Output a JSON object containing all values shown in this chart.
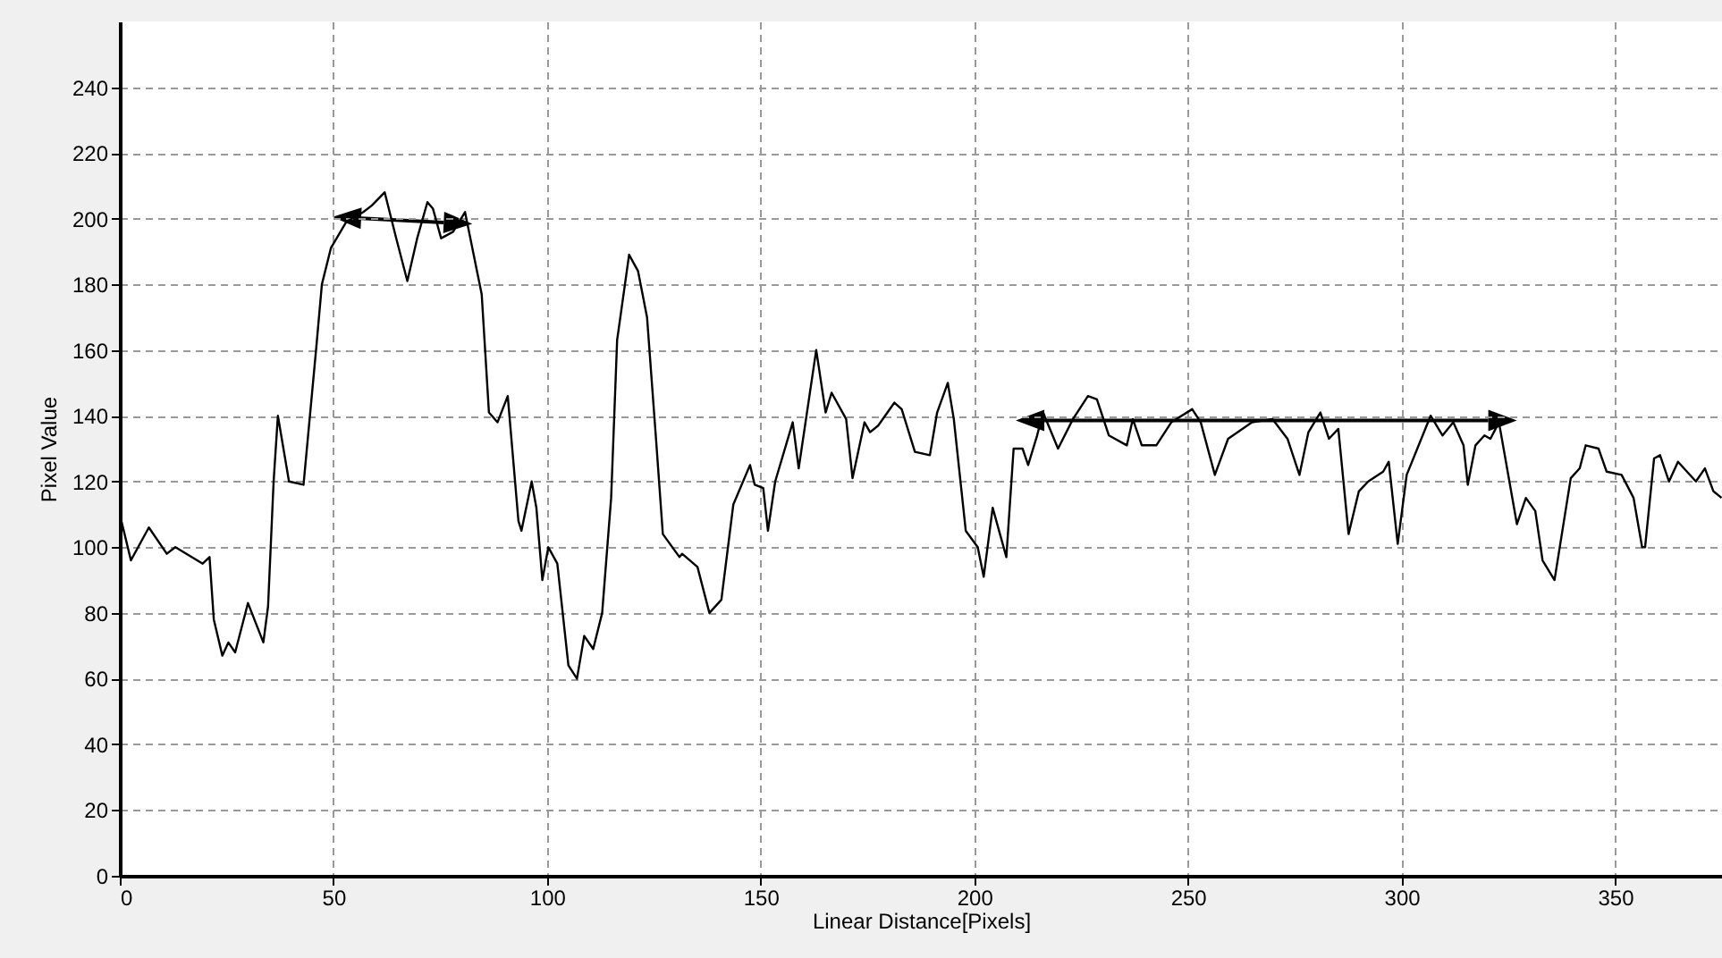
{
  "chart_data": {
    "type": "line",
    "xlabel": "Linear Distance[Pixels]",
    "ylabel": "Pixel Value",
    "x": [
      0,
      2.6,
      6.8,
      11,
      13,
      19.4,
      21,
      22,
      24,
      25.4,
      27,
      30,
      33.6,
      34.7,
      36,
      37,
      39.6,
      43,
      46,
      47.3,
      49.4,
      53,
      57,
      59,
      62,
      64.7,
      67.3,
      69.6,
      72,
      73.3,
      75.2,
      78,
      80.8,
      84.7,
      86.4,
      88.4,
      90.8,
      93.3,
      94,
      96.4,
      97.5,
      98.9,
      100.3,
      102.4,
      105,
      107,
      108.7,
      110.8,
      112.9,
      115,
      116.4,
      119.2,
      121.3,
      123.4,
      125.5,
      127.1,
      131,
      131.6,
      135.2,
      138,
      140.8,
      143.6,
      147.5,
      148.6,
      150.6,
      151.7,
      153.4,
      157.5,
      158.9,
      163,
      165.2,
      166.6,
      170,
      171.5,
      174.3,
      175.6,
      177.5,
      181.3,
      183,
      186.1,
      189.6,
      191.3,
      193.8,
      195.2,
      198,
      200.8,
      202.2,
      204.3,
      207.5,
      209.2,
      211.3,
      212.6,
      214.7,
      216.1,
      219.6,
      223.1,
      226.6,
      228.7,
      231.5,
      235.7,
      237.1,
      239.2,
      242.6,
      246.1,
      251,
      253,
      256.3,
      259.4,
      265,
      269.8,
      273.3,
      276.1,
      278.2,
      281,
      283,
      285.2,
      287.6,
      290,
      292.2,
      295.7,
      297,
      299.1,
      301.2,
      306.8,
      309.6,
      312.1,
      314.5,
      315.5,
      317.3,
      319.4,
      320.8,
      322.8,
      327,
      329.1,
      331.3,
      333,
      335.8,
      339.6,
      341.7,
      343.1,
      346.1,
      348,
      351.5,
      354.3,
      356.3,
      357,
      359.1,
      360.5,
      362.6,
      364.7,
      368.9,
      371,
      373,
      374.9
    ],
    "series": [
      {
        "color": "#000000",
        "values": [
          110,
          96,
          106,
          98,
          100,
          95,
          97,
          78,
          67,
          71,
          68,
          83,
          71,
          82,
          120,
          140,
          120,
          119,
          161,
          180,
          191,
          199,
          202,
          204,
          208,
          194,
          181,
          194,
          205,
          203,
          194,
          196,
          202,
          177,
          141,
          138,
          146,
          108,
          105,
          120,
          112,
          90,
          100,
          95,
          64,
          60,
          73,
          69,
          80,
          115,
          163,
          189,
          184,
          170,
          133,
          104,
          97,
          98,
          94,
          80,
          84,
          113,
          125,
          119,
          118,
          105,
          120,
          138,
          124,
          160,
          141,
          147,
          139,
          121,
          138,
          135,
          137,
          144,
          142,
          129,
          128,
          141,
          150,
          139,
          105,
          100,
          91,
          112,
          97,
          130,
          130,
          125,
          134,
          141,
          130,
          139,
          146,
          145,
          134,
          131,
          139,
          131,
          131,
          138,
          142,
          138,
          122,
          133,
          138,
          139,
          133,
          122,
          135,
          141,
          133,
          136,
          104,
          117,
          120,
          123,
          126,
          101,
          122,
          140,
          134,
          138,
          131,
          119,
          131,
          134,
          133,
          138,
          107,
          115,
          111,
          96,
          90,
          121,
          124,
          131,
          130,
          123,
          122,
          115,
          100,
          100,
          127,
          128,
          120,
          126,
          120,
          124,
          117,
          115
        ]
      }
    ],
    "xlim": [
      0,
      375
    ],
    "xticks": [
      0,
      50,
      100,
      150,
      200,
      250,
      300,
      350
    ],
    "ylim": [
      0,
      260
    ],
    "yticks": [
      0,
      20,
      40,
      60,
      80,
      100,
      120,
      140,
      160,
      180,
      200,
      220,
      240
    ],
    "grid": true,
    "line_style": "solid",
    "marker": "none"
  }
}
